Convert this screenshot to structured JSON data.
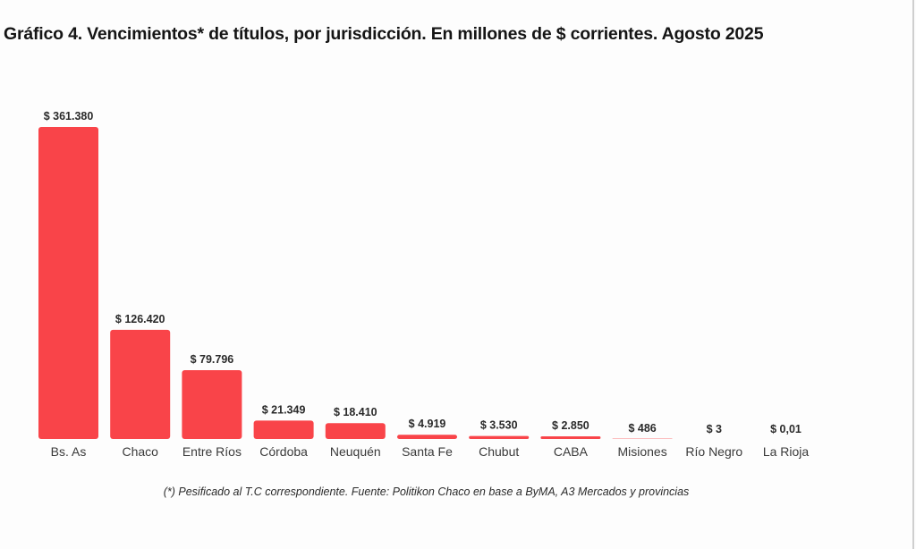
{
  "title": "Gráfico 4. Vencimientos* de títulos, por jurisdicción. En millones de $ corrientes. Agosto 2025",
  "footnote": "(*) Pesificado al T.C correspondiente. Fuente: Politikon Chaco en base a ByMA, A3 Mercados y provincias",
  "colors": {
    "bar": "#f94449",
    "background": "#fdfdfd"
  },
  "chart_data": {
    "type": "bar",
    "title": "Gráfico 4. Vencimientos* de títulos, por jurisdicción. En millones de $ corrientes. Agosto 2025",
    "xlabel": "",
    "ylabel": "",
    "unit": "millones de $ corrientes",
    "grid": false,
    "legend": "none",
    "ylim": [
      0,
      361380
    ],
    "categories": [
      "Bs. As",
      "Chaco",
      "Entre Ríos",
      "Córdoba",
      "Neuquén",
      "Santa Fe",
      "Chubut",
      "CABA",
      "Misiones",
      "Río Negro",
      "La Rioja"
    ],
    "values": [
      361380,
      126420,
      79796,
      21349,
      18410,
      4919,
      3530,
      2850,
      486,
      3,
      0.01
    ],
    "value_labels": [
      "$ 361.380",
      "$ 126.420",
      "$ 79.796",
      "$ 21.349",
      "$ 18.410",
      "$ 4.919",
      "$ 3.530",
      "$ 2.850",
      "$ 486",
      "$ 3",
      "$ 0,01"
    ]
  }
}
